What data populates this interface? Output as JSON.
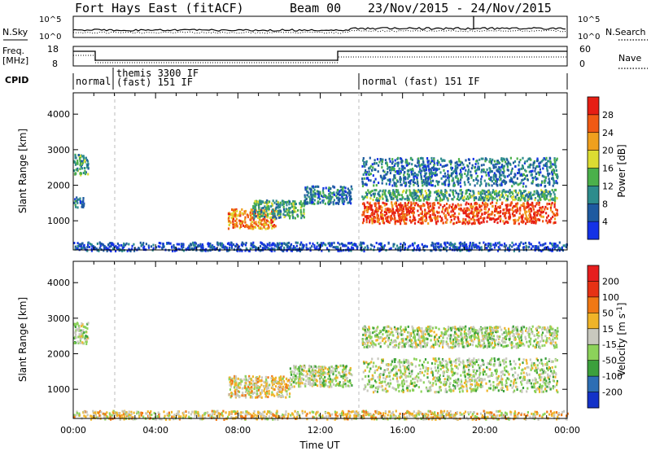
{
  "header": {
    "radar": "Fort Hays East (fitACF)",
    "beam": "Beam 00",
    "dates": "23/Nov/2015 - 24/Nov/2015"
  },
  "labels": {
    "nsky": "N.Sky",
    "nsearch": "N.Search",
    "freq_line1": "Freq.",
    "freq_line2": "[MHz]",
    "nave": "Nave",
    "cpid": "CPID"
  },
  "noise_axis": {
    "left_top": "10^5",
    "left_bottom": "10^0",
    "right_top": "10^5",
    "right_bottom": "10^0"
  },
  "freq_axis": {
    "left_ticks": [
      "18",
      "8"
    ],
    "right_ticks": [
      "60",
      "0"
    ]
  },
  "cpid_segments": [
    {
      "label": "normal",
      "start_hour": 0.0,
      "end_hour": 2.0,
      "row": 2
    },
    {
      "label": "themis 3300 IF",
      "start_hour": 2.0,
      "end_hour": 14.0,
      "row": 1
    },
    {
      "label": "(fast) 151 IF",
      "start_hour": 2.0,
      "end_hour": 14.0,
      "row": 2
    },
    {
      "label": "normal (fast) 151 IF",
      "start_hour": 14.0,
      "end_hour": 24.0,
      "row": 2
    }
  ],
  "chart_data": [
    {
      "type": "heatmap",
      "name": "power",
      "xlabel": "",
      "ylabel": "Slant Range [km]",
      "xlim": [
        0,
        24
      ],
      "ylim": [
        180,
        4600
      ],
      "yticks": [
        "1000",
        "2000",
        "3000",
        "4000"
      ],
      "colorbar_label": "Power [dB]",
      "colorbar_ticks": [
        "4",
        "8",
        "12",
        "16",
        "20",
        "24",
        "28"
      ],
      "colorbar_colors": [
        "#1432e6",
        "#1e5aa0",
        "#2d8c8c",
        "#4bb04b",
        "#dcdc32",
        "#f0a01e",
        "#f05a14",
        "#e61e14"
      ],
      "blobs": [
        {
          "x": [
            0.0,
            0.7
          ],
          "y": [
            2300,
            2900
          ],
          "level": 3
        },
        {
          "x": [
            0.0,
            0.5
          ],
          "y": [
            1400,
            1700
          ],
          "level": 2
        },
        {
          "x": [
            7.5,
            9.8
          ],
          "y": [
            800,
            1350
          ],
          "level": 6
        },
        {
          "x": [
            8.7,
            11.2
          ],
          "y": [
            1100,
            1600
          ],
          "level": 3
        },
        {
          "x": [
            11.2,
            13.5
          ],
          "y": [
            1500,
            2000
          ],
          "level": 2
        },
        {
          "x": [
            14.0,
            23.5
          ],
          "y": [
            950,
            1550
          ],
          "level": 7
        },
        {
          "x": [
            14.0,
            23.5
          ],
          "y": [
            1600,
            1900
          ],
          "level": 3
        },
        {
          "x": [
            14.0,
            23.5
          ],
          "y": [
            2000,
            2800
          ],
          "level": 2
        },
        {
          "x": [
            0.0,
            24.0
          ],
          "y": [
            180,
            420
          ],
          "level": 1
        }
      ]
    },
    {
      "type": "heatmap",
      "name": "velocity",
      "xlabel": "Time UT",
      "ylabel": "Slant Range [km]",
      "xlim": [
        0,
        24
      ],
      "ylim": [
        180,
        4600
      ],
      "xticks": [
        "00:00",
        "04:00",
        "08:00",
        "12:00",
        "16:00",
        "20:00",
        "00:00"
      ],
      "yticks": [
        "1000",
        "2000",
        "3000",
        "4000"
      ],
      "colorbar_label": "Velocity [m s^-1]",
      "colorbar_ticks": [
        "200",
        "100",
        "50",
        "15",
        "-15",
        "-50",
        "-100",
        "-200"
      ],
      "colorbar_colors": [
        "#1432c8",
        "#2d6eb4",
        "#3ca03c",
        "#8cd25a",
        "#c8c8be",
        "#f0b428",
        "#f07814",
        "#e63214",
        "#e61e1e"
      ],
      "blobs": [
        {
          "x": [
            0.0,
            0.7
          ],
          "y": [
            2300,
            2900
          ],
          "level": 4
        },
        {
          "x": [
            7.5,
            10.5
          ],
          "y": [
            800,
            1400
          ],
          "level": 5
        },
        {
          "x": [
            10.5,
            13.5
          ],
          "y": [
            1100,
            1700
          ],
          "level": 4
        },
        {
          "x": [
            14.0,
            23.5
          ],
          "y": [
            950,
            1900
          ],
          "level": 4
        },
        {
          "x": [
            14.0,
            23.5
          ],
          "y": [
            2200,
            2800
          ],
          "level": 4
        },
        {
          "x": [
            0.0,
            24.0
          ],
          "y": [
            180,
            420
          ],
          "level": 5
        }
      ]
    }
  ]
}
